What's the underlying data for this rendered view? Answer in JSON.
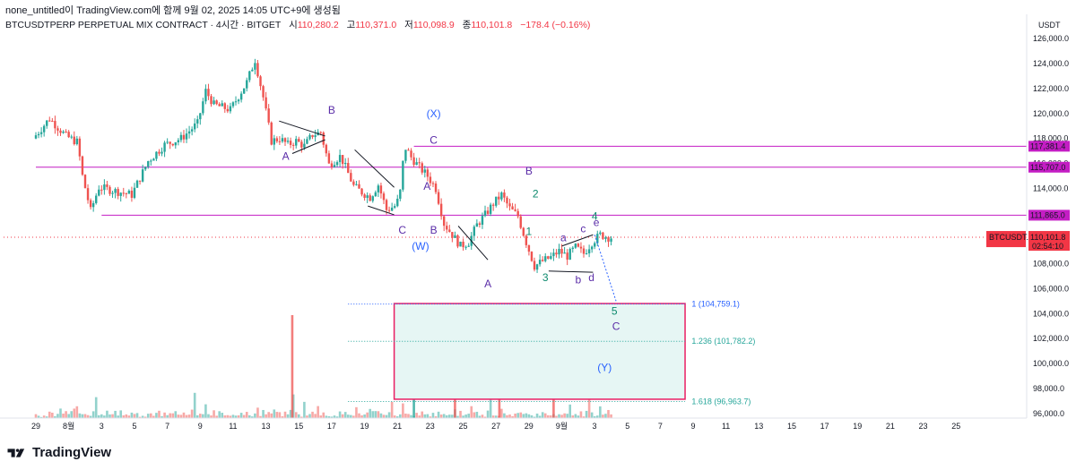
{
  "header": {
    "title": "none_untitled이 TradingView.com에 함께 9월 02, 2025 14:05 UTC+9에 생성됨",
    "symbol": "BTCUSDTPERP PERPETUAL MIX CONTRACT · 4시간 · BITGET",
    "open_label": "시",
    "open": "110,280.2",
    "high_label": "고",
    "high": "110,371.0",
    "low_label": "저",
    "low": "110,098.9",
    "close_label": "종",
    "close": "110,101.8",
    "change": "−178.4 (−0.16%)"
  },
  "footer": {
    "brand": "TradingView"
  },
  "colors": {
    "up": "#26a69a",
    "down": "#ef5350",
    "hline": "#c41dc4",
    "accent_red": "#f23645",
    "box_border": "#e91e63",
    "box_fill": "#e6f6f4",
    "wave_purple": "#5b2da8",
    "wave_blue": "#2962ff",
    "wave_teal": "#0e8a6e"
  },
  "chart_data": {
    "type": "candlestick",
    "title": "BTCUSDTPERP PERPETUAL MIX CONTRACT · 4시간 · BITGET",
    "price_axis_unit": "USDT",
    "ylim": [
      95500,
      127000
    ],
    "y_ticks": [
      "126,000.0",
      "124,000.0",
      "122,000.0",
      "120,000.0",
      "118,000.0",
      "116,000.0",
      "114,000.0",
      "112,000.0",
      "108,000.0",
      "106,000.0",
      "104,000.0",
      "102,000.0",
      "100,000.0",
      "98,000.0",
      "96,000.0"
    ],
    "x_ticks": [
      "29",
      "8월",
      "3",
      "5",
      "7",
      "9",
      "11",
      "13",
      "15",
      "17",
      "19",
      "21",
      "23",
      "25",
      "27",
      "29",
      "9월",
      "3",
      "5",
      "7",
      "9",
      "11",
      "13",
      "15",
      "17",
      "19",
      "21",
      "23",
      "25"
    ],
    "x_range_days": [
      0,
      59
    ],
    "price_path": [
      [
        0,
        118000
      ],
      [
        1,
        119600
      ],
      [
        2,
        118200
      ],
      [
        2.7,
        117700
      ],
      [
        3,
        115000
      ],
      [
        3.5,
        112200
      ],
      [
        4,
        114100
      ],
      [
        5,
        113800
      ],
      [
        6,
        113500
      ],
      [
        7,
        116200
      ],
      [
        8,
        117500
      ],
      [
        9,
        118000
      ],
      [
        10,
        119200
      ],
      [
        10.5,
        121800
      ],
      [
        11,
        120700
      ],
      [
        12,
        120300
      ],
      [
        13,
        122500
      ],
      [
        13.5,
        124300
      ],
      [
        14,
        121300
      ],
      [
        14.5,
        117800
      ],
      [
        15,
        118000
      ],
      [
        15.5,
        117500
      ],
      [
        16,
        117800
      ],
      [
        16.5,
        117400
      ],
      [
        17,
        118300
      ],
      [
        17.5,
        118500
      ],
      [
        18,
        115900
      ],
      [
        18.7,
        116600
      ],
      [
        19.5,
        114200
      ],
      [
        20,
        113700
      ],
      [
        20.5,
        113300
      ],
      [
        21,
        114300
      ],
      [
        21.5,
        112300
      ],
      [
        22,
        112600
      ],
      [
        22.3,
        113300
      ],
      [
        22.6,
        117400
      ],
      [
        23,
        116500
      ],
      [
        23.5,
        115700
      ],
      [
        24,
        115000
      ],
      [
        24.5,
        114000
      ],
      [
        25,
        111200
      ],
      [
        25.5,
        110300
      ],
      [
        26,
        109400
      ],
      [
        26.5,
        109700
      ],
      [
        27,
        111100
      ],
      [
        27.5,
        111900
      ],
      [
        28,
        112800
      ],
      [
        28.5,
        113500
      ],
      [
        29,
        112400
      ],
      [
        29.5,
        111800
      ],
      [
        30,
        109700
      ],
      [
        30.5,
        107800
      ],
      [
        31,
        108200
      ],
      [
        31.5,
        108500
      ],
      [
        32,
        109000
      ],
      [
        32.5,
        108600
      ],
      [
        33,
        109300
      ],
      [
        33.5,
        108800
      ],
      [
        34,
        109700
      ],
      [
        34.5,
        110300
      ],
      [
        35,
        110100
      ]
    ],
    "volume_profile": [
      3,
      4,
      2,
      5,
      3,
      6,
      4,
      3,
      5,
      8,
      4,
      6,
      3,
      5,
      7,
      10,
      6,
      5,
      4,
      5,
      3,
      6,
      18,
      5,
      4,
      3,
      12,
      5,
      4,
      6,
      3,
      9,
      4,
      6,
      3,
      4
    ],
    "volume_spikes": [
      {
        "day": 15.6,
        "rel": 1.0,
        "dir": "down"
      },
      {
        "day": 23.0,
        "rel": 0.82,
        "dir": "up"
      },
      {
        "day": 25.5,
        "rel": 0.85,
        "dir": "down"
      },
      {
        "day": 28.2,
        "rel": 0.38,
        "dir": "down"
      },
      {
        "day": 31.5,
        "rel": 0.5,
        "dir": "down"
      }
    ],
    "horizontal_levels": [
      {
        "price": 117381.4,
        "label": "117,381.4",
        "from_day": 23.0
      },
      {
        "price": 115707.0,
        "label": "115,707.0",
        "from_day": 0
      },
      {
        "price": 111865.0,
        "label": "111,865.0",
        "from_day": 4.0
      }
    ],
    "current_price": {
      "symbol": "BTCUSDT.P",
      "price": "110,101.8",
      "value": 110101.8,
      "countdown": "02:54:10"
    },
    "fib_levels": [
      {
        "ratio_label": "1 (104,759.1)",
        "value": 104759.1
      },
      {
        "ratio_label": "1.236 (101,782.2)",
        "value": 101782.2
      },
      {
        "ratio_label": "1.618 (96,963.7)",
        "value": 96963.7
      }
    ],
    "target_box": {
      "from_day": 21.8,
      "to_day": 39.5,
      "top": 104800,
      "bottom": 97150
    },
    "wave_labels": [
      {
        "text": "A",
        "day": 15.2,
        "price": 116300,
        "color": "purple"
      },
      {
        "text": "B",
        "day": 18.0,
        "price": 120000,
        "color": "purple"
      },
      {
        "text": "(X)",
        "day": 24.2,
        "price": 119700,
        "color": "blue"
      },
      {
        "text": "C",
        "day": 24.2,
        "price": 117600,
        "color": "purple"
      },
      {
        "text": "A",
        "day": 23.8,
        "price": 113900,
        "color": "purple"
      },
      {
        "text": "C",
        "day": 22.3,
        "price": 110400,
        "color": "purple"
      },
      {
        "text": "B",
        "day": 24.2,
        "price": 110400,
        "color": "purple"
      },
      {
        "text": "(W)",
        "day": 23.4,
        "price": 109100,
        "color": "blue"
      },
      {
        "text": "A",
        "day": 27.5,
        "price": 106100,
        "color": "purple"
      },
      {
        "text": "B",
        "day": 30.0,
        "price": 115100,
        "color": "purple"
      },
      {
        "text": "2",
        "day": 30.4,
        "price": 113300,
        "color": "teal"
      },
      {
        "text": "1",
        "day": 30.0,
        "price": 110300,
        "color": "teal"
      },
      {
        "text": "3",
        "day": 31.0,
        "price": 106600,
        "color": "teal"
      },
      {
        "text": "a",
        "day": 32.1,
        "price": 109800,
        "color": "purple"
      },
      {
        "text": "b",
        "day": 33.0,
        "price": 106400,
        "color": "purple"
      },
      {
        "text": "c",
        "day": 33.3,
        "price": 110500,
        "color": "purple"
      },
      {
        "text": "d",
        "day": 33.8,
        "price": 106600,
        "color": "purple"
      },
      {
        "text": "4",
        "day": 34.0,
        "price": 111500,
        "color": "teal"
      },
      {
        "text": "e",
        "day": 34.1,
        "price": 111000,
        "color": "purple"
      },
      {
        "text": "5",
        "day": 35.2,
        "price": 103900,
        "color": "teal"
      },
      {
        "text": "C",
        "day": 35.3,
        "price": 102700,
        "color": "purple"
      },
      {
        "text": "(Y)",
        "day": 34.6,
        "price": 99400,
        "color": "blue"
      }
    ]
  }
}
